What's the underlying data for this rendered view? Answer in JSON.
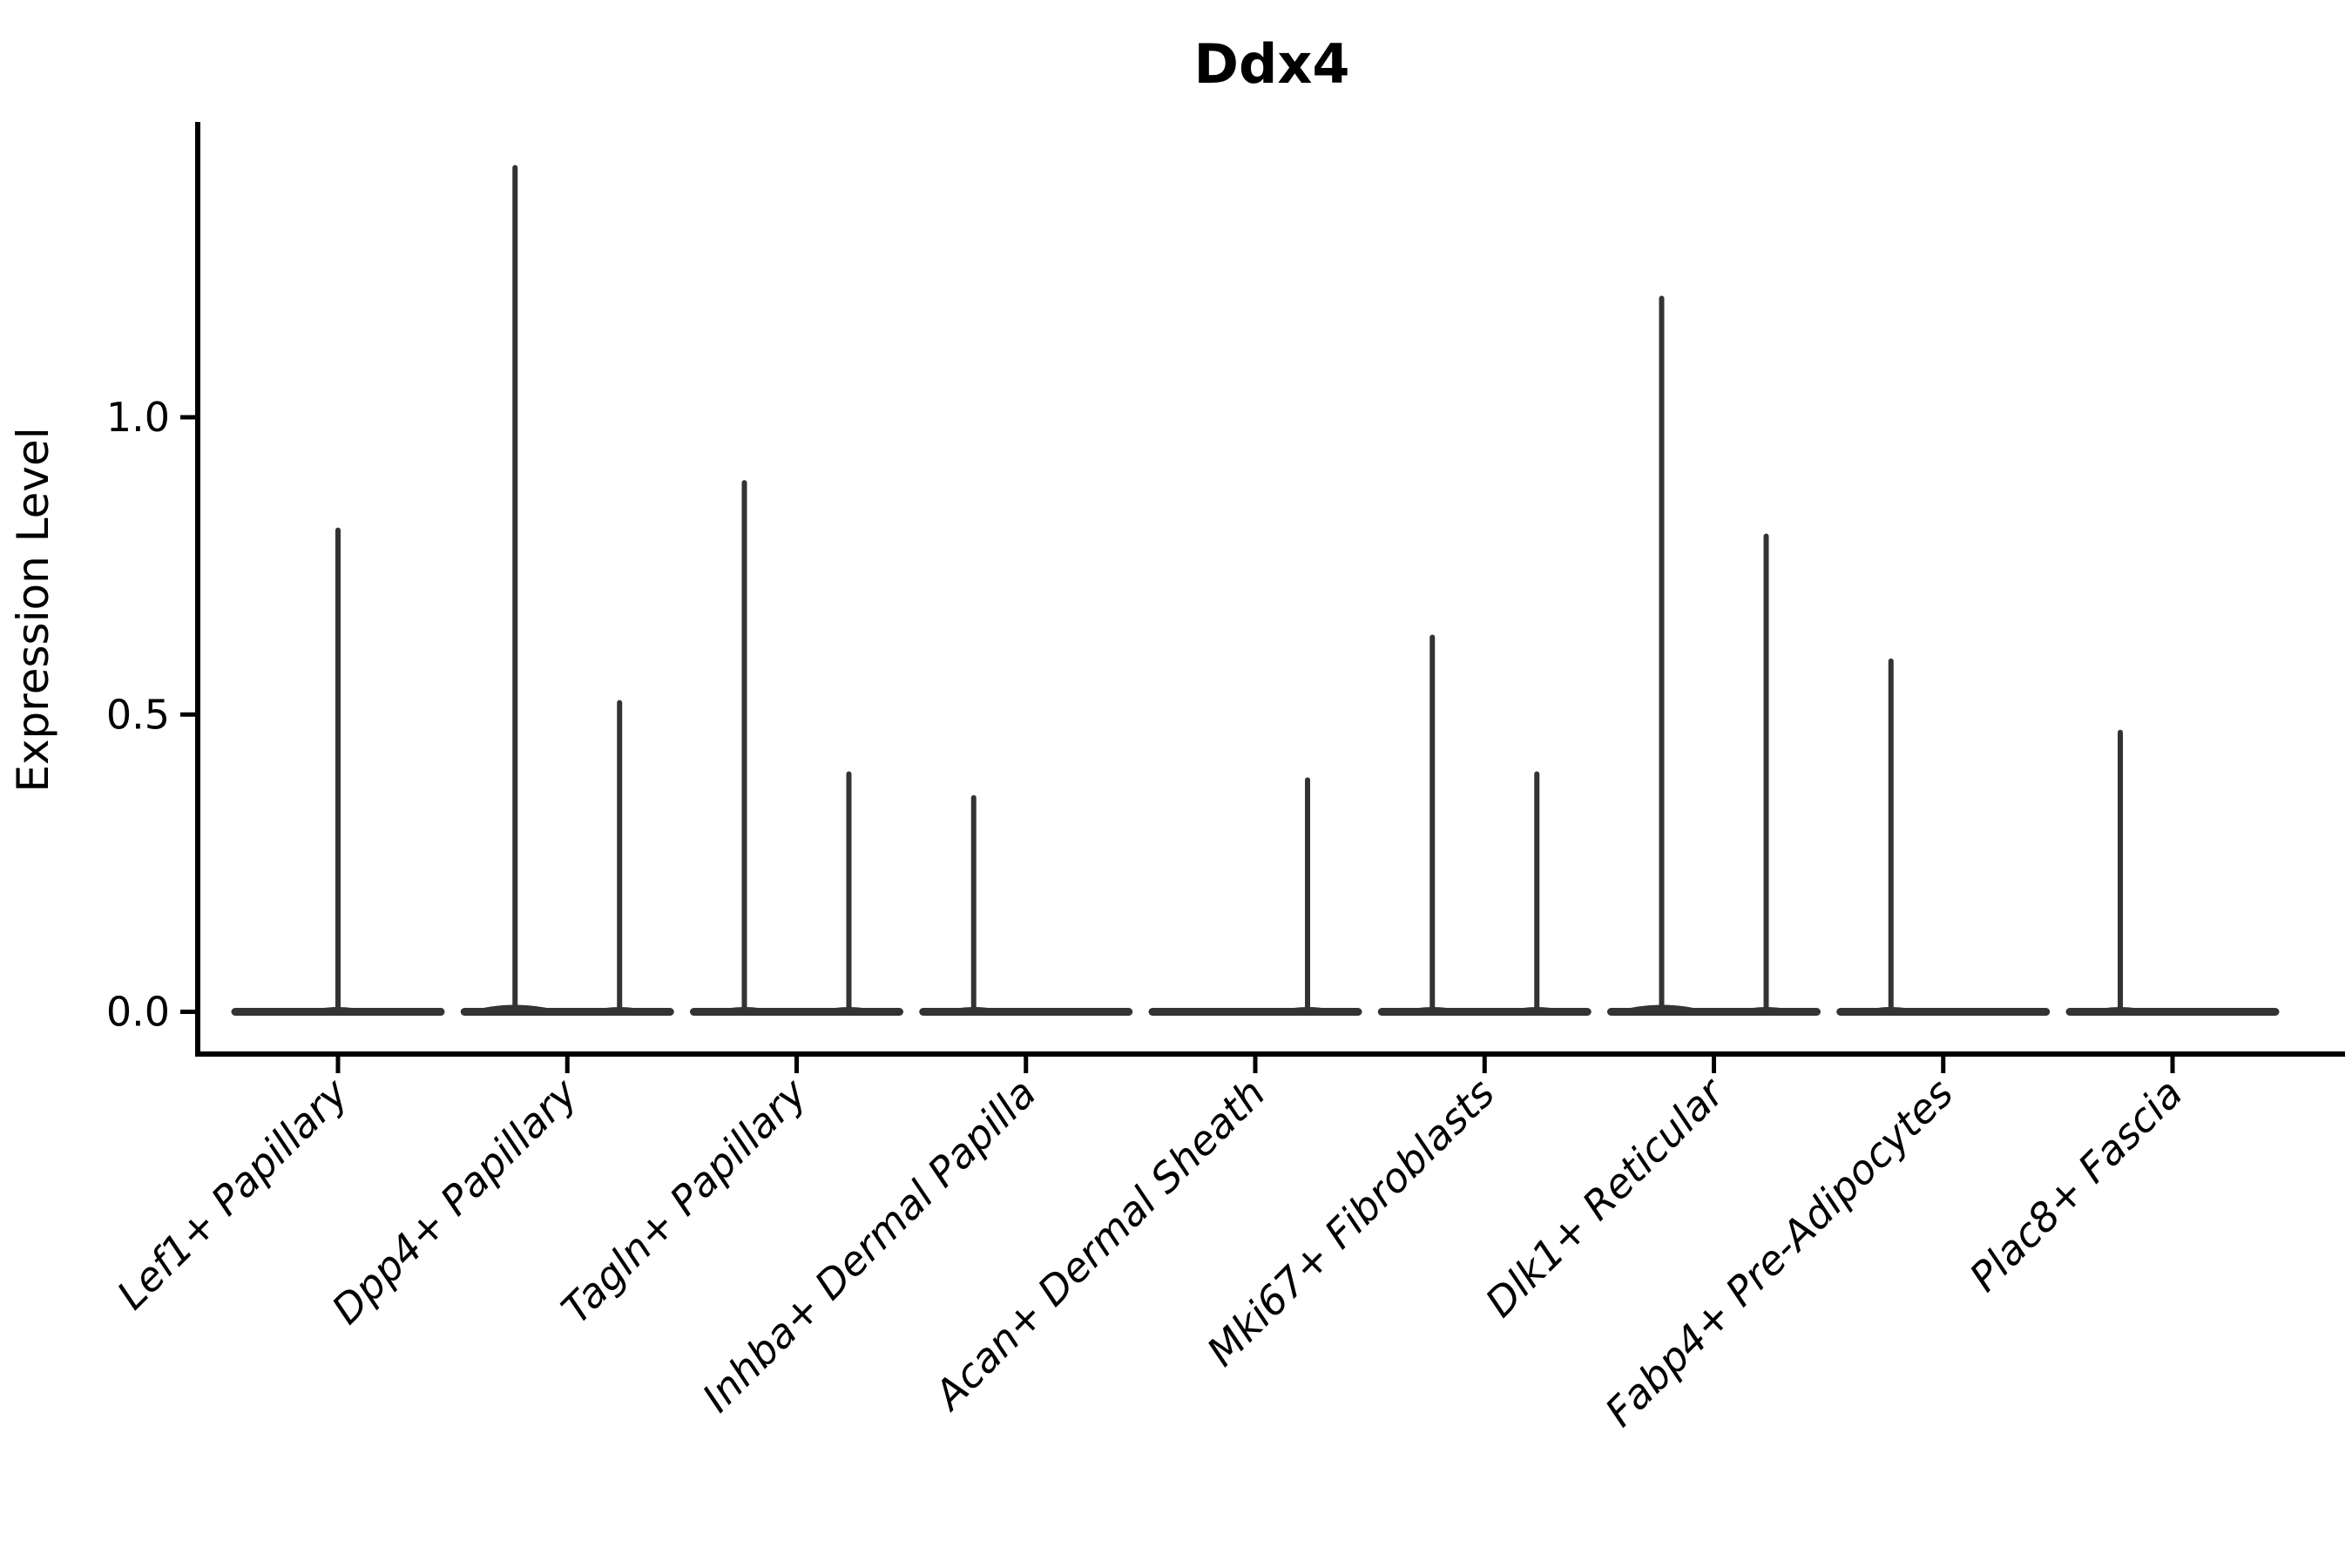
{
  "chart_data": {
    "type": "violin",
    "title": "Ddx4",
    "xlabel": "",
    "ylabel": "Expression Level",
    "yticks": [
      0.0,
      0.5,
      1.0
    ],
    "ylim": [
      -0.07,
      1.5
    ],
    "grid": false,
    "legend": "none",
    "categories": [
      "Lef1+ Papillary",
      "Dpp4+ Papillary",
      "Tagln+ Papillary",
      "Inhba+ Dermal Papilla",
      "Acan+ Dermal Sheath",
      "Mki67+ Fibroblasts",
      "Dlk1+ Reticular",
      "Fabp4+ Pre-Adipocytes",
      "Plac8+ Fascia"
    ],
    "groups": [
      {
        "category": "Lef1+ Papillary",
        "violins": [
          {
            "pos": "center",
            "max": 0.81
          }
        ]
      },
      {
        "category": "Dpp4+ Papillary",
        "violins": [
          {
            "pos": "left",
            "max": 1.42
          },
          {
            "pos": "right",
            "max": 0.52
          }
        ]
      },
      {
        "category": "Tagln+ Papillary",
        "violins": [
          {
            "pos": "left",
            "max": 0.89
          },
          {
            "pos": "right",
            "max": 0.4
          }
        ]
      },
      {
        "category": "Inhba+ Dermal Papilla",
        "violins": [
          {
            "pos": "left",
            "max": 0.36
          },
          {
            "pos": "right",
            "max": 0
          }
        ]
      },
      {
        "category": "Acan+ Dermal Sheath",
        "violins": [
          {
            "pos": "left",
            "max": 0
          },
          {
            "pos": "right",
            "max": 0.39
          }
        ]
      },
      {
        "category": "Mki67+ Fibroblasts",
        "violins": [
          {
            "pos": "left",
            "max": 0.63
          },
          {
            "pos": "right",
            "max": 0.4
          }
        ]
      },
      {
        "category": "Dlk1+ Reticular",
        "violins": [
          {
            "pos": "left",
            "max": 1.2
          },
          {
            "pos": "right",
            "max": 0.8
          }
        ]
      },
      {
        "category": "Fabp4+ Pre-Adipocytes",
        "violins": [
          {
            "pos": "left",
            "max": 0.59
          },
          {
            "pos": "right",
            "max": 0
          }
        ]
      },
      {
        "category": "Plac8+ Fascia",
        "violins": [
          {
            "pos": "left",
            "max": 0.47
          },
          {
            "pos": "right",
            "max": 0
          }
        ]
      }
    ],
    "colors": {
      "background": "#ffffff",
      "axis_ink": "#000000",
      "violin_ink": "#333333"
    }
  }
}
